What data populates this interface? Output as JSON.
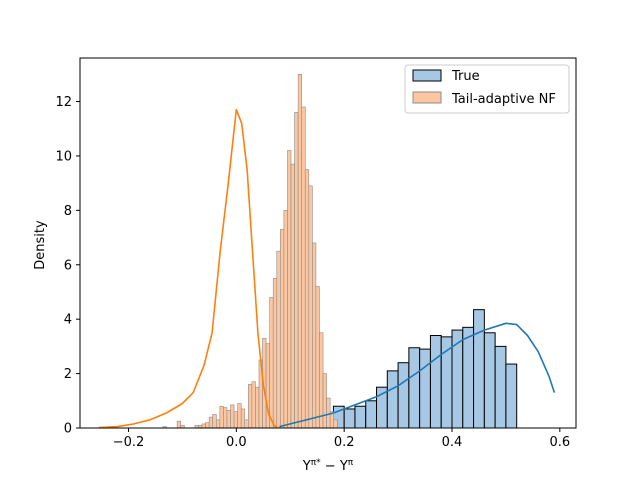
{
  "chart_data": {
    "type": "histogram",
    "xlabel": "Y^{π*} − Y^{π}",
    "ylabel": "Density",
    "xlim": [
      -0.29,
      0.63
    ],
    "ylim": [
      0,
      13.6
    ],
    "xticks": [
      -0.2,
      0.0,
      0.2,
      0.4,
      0.6
    ],
    "xtick_labels": [
      "−0.2",
      "0.0",
      "0.2",
      "0.4",
      "0.6"
    ],
    "yticks": [
      0,
      2,
      4,
      6,
      8,
      10,
      12
    ],
    "ytick_labels": [
      "0",
      "2",
      "4",
      "6",
      "8",
      "10",
      "12"
    ],
    "legend_position": "top-right",
    "series": [
      {
        "name": "True",
        "color": "#1f77b4",
        "fill": "#a6c8e4",
        "edge": "#000000",
        "bins_start": 0.08,
        "bin_width": 0.02,
        "values": [
          0.1,
          0.3,
          0.2,
          0.3,
          0.3,
          0.8,
          0.7,
          0.8,
          1.0,
          1.5,
          2.1,
          2.4,
          2.95,
          2.9,
          3.4,
          3.35,
          3.6,
          3.7,
          4.35,
          3.5,
          3.0,
          2.35
        ],
        "kde_x": [
          0.08,
          0.1,
          0.14,
          0.18,
          0.22,
          0.26,
          0.3,
          0.34,
          0.38,
          0.42,
          0.46,
          0.5,
          0.52,
          0.54,
          0.56,
          0.58,
          0.59
        ],
        "kde_y": [
          0.05,
          0.15,
          0.35,
          0.55,
          0.85,
          1.15,
          1.55,
          2.1,
          2.7,
          3.25,
          3.6,
          3.85,
          3.8,
          3.4,
          2.8,
          1.9,
          1.3
        ]
      },
      {
        "name": "Tail-adaptive NF",
        "color": "#ff7f0e",
        "fill": "#fcc7a0",
        "edge": "#8c8c8c",
        "bins_start": -0.255,
        "bin_width": 0.0066,
        "values": [
          0,
          0,
          0,
          0,
          0,
          0,
          0,
          0,
          0,
          0,
          0,
          0,
          0,
          0,
          0,
          0,
          0,
          0,
          0.05,
          0,
          0,
          0,
          0.25,
          0.1,
          0,
          0,
          0,
          0.1,
          0.1,
          0.15,
          0.2,
          0.4,
          0.5,
          0.3,
          0.8,
          0.75,
          0.65,
          0.85,
          0.6,
          0.9,
          0.7,
          0.3,
          1.6,
          1.7,
          1.5,
          2.5,
          3.3,
          3.1,
          4.8,
          5.5,
          6.5,
          7.3,
          8.0,
          10.2,
          9.7,
          11.6,
          13.0,
          11.8,
          9.5,
          8.9,
          6.8,
          5.2,
          3.5,
          2.0,
          1.1,
          0.6,
          0.3
        ],
        "kde_x": [
          -0.255,
          -0.22,
          -0.19,
          -0.16,
          -0.13,
          -0.1,
          -0.08,
          -0.06,
          -0.045,
          -0.03,
          -0.015,
          0.0,
          0.01,
          0.02,
          0.03,
          0.04,
          0.05,
          0.06,
          0.07,
          0.075
        ],
        "kde_y": [
          0.02,
          0.05,
          0.15,
          0.3,
          0.55,
          0.9,
          1.3,
          2.3,
          3.5,
          6.5,
          9.0,
          11.7,
          11.2,
          9.5,
          6.5,
          3.5,
          1.6,
          0.5,
          0.1,
          0.03
        ]
      }
    ]
  }
}
